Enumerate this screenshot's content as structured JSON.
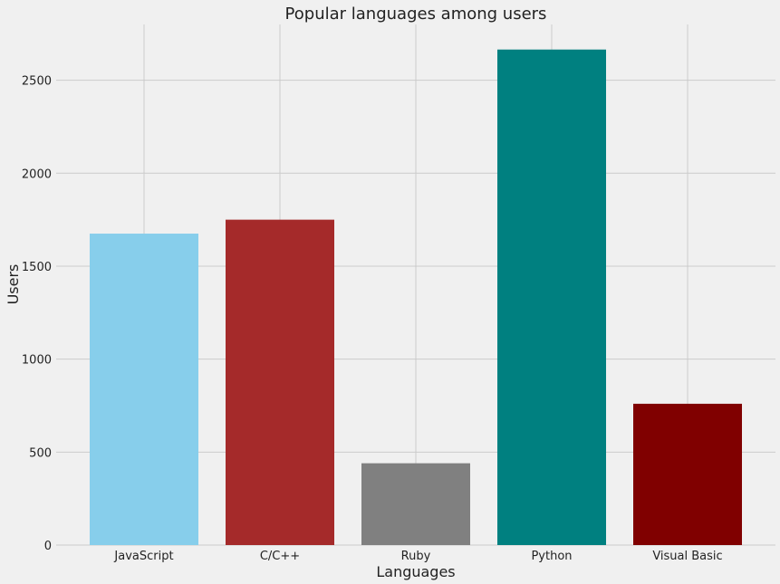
{
  "chart_data": {
    "type": "bar",
    "title": "Popular languages among users",
    "xlabel": "Languages",
    "ylabel": "Users",
    "categories": [
      "JavaScript",
      "C/C++",
      "Ruby",
      "Python",
      "Visual Basic"
    ],
    "values": [
      1675,
      1750,
      440,
      2665,
      760
    ],
    "colors": [
      "#87ceeb",
      "#a52a2a",
      "#808080",
      "#008080",
      "#800000"
    ],
    "ylim": [
      0,
      2800
    ],
    "yticks": [
      0,
      500,
      1000,
      1500,
      2000,
      2500
    ],
    "grid": true,
    "background": "#f0f0f0"
  }
}
